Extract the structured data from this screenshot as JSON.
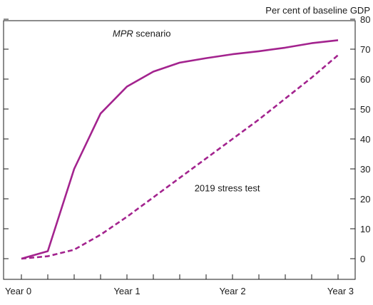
{
  "chart_data": {
    "type": "line",
    "title": "",
    "xlabel": "",
    "ylabel": "",
    "unit_label": "Per cent of baseline GDP",
    "xlim": [
      0,
      3
    ],
    "ylim": [
      0,
      80
    ],
    "x_ticks": [
      0,
      0.25,
      0.5,
      0.75,
      1,
      1.25,
      1.5,
      1.75,
      2,
      2.25,
      2.5,
      2.75,
      3
    ],
    "x_tick_labels": [
      {
        "x": 0,
        "label": "Year 0"
      },
      {
        "x": 1,
        "label": "Year 1"
      },
      {
        "x": 2,
        "label": "Year 2"
      },
      {
        "x": 3,
        "label": "Year 3"
      }
    ],
    "y_ticks": [
      0,
      10,
      20,
      30,
      40,
      50,
      60,
      70,
      80
    ],
    "y_tick_labels": [
      "0",
      "10",
      "20",
      "30",
      "40",
      "50",
      "60",
      "70",
      "80"
    ],
    "grid": false,
    "legend": "none",
    "series": [
      {
        "label_id": "mpr",
        "color": "#a3238e",
        "dash": "solid",
        "x": [
          0,
          0.25,
          0.5,
          0.75,
          1,
          1.25,
          1.5,
          1.75,
          2,
          2.25,
          2.5,
          2.75,
          3
        ],
        "values": [
          0,
          2.5,
          30,
          48.5,
          57.5,
          62.5,
          65.5,
          67,
          68.3,
          69.3,
          70.5,
          72,
          73
        ]
      },
      {
        "label_id": "stress",
        "color": "#a3238e",
        "dash": "dashed",
        "x": [
          0,
          0.25,
          0.5,
          0.75,
          1,
          1.25,
          1.5,
          1.75,
          2,
          2.25,
          2.5,
          2.75,
          3
        ],
        "values": [
          0,
          0.8,
          3,
          8,
          14,
          20.5,
          27,
          33.5,
          40,
          46.5,
          53.5,
          60.5,
          68
        ]
      }
    ],
    "annotations": [
      {
        "id": "mpr",
        "italic_part": "MPR",
        "rest": " scenario",
        "x": 1.14,
        "y": 74.2
      },
      {
        "id": "stress",
        "italic_part": "",
        "rest": "2019 stress test",
        "x": 1.95,
        "y": 22.5
      }
    ]
  }
}
